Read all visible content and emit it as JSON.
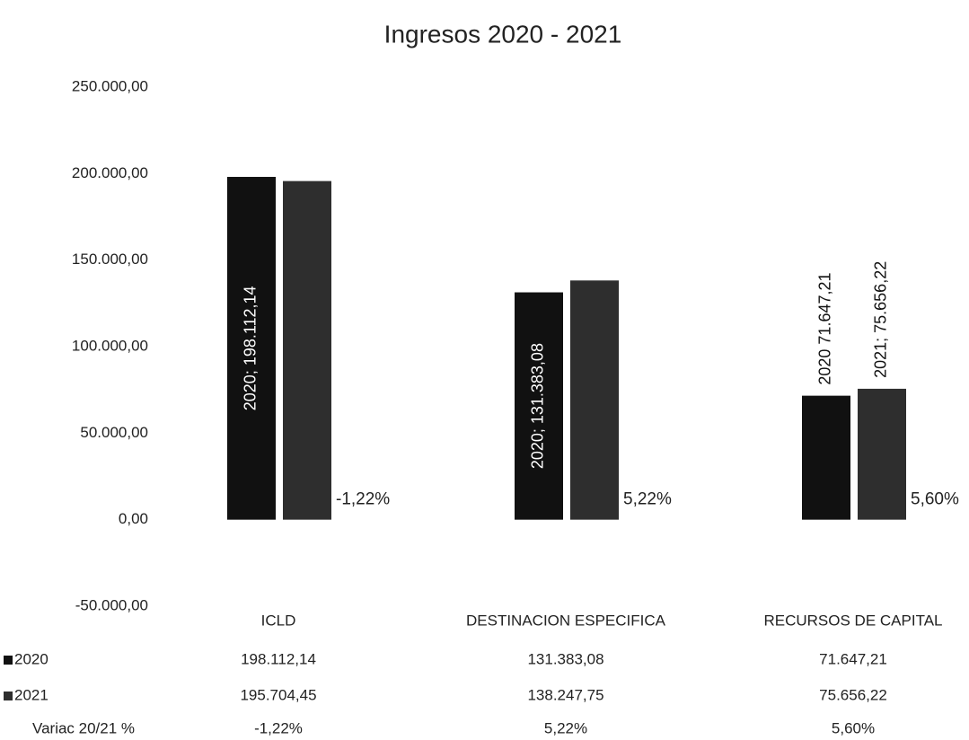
{
  "chart_data": {
    "type": "bar",
    "title": "Ingresos 2020 - 2021",
    "categories": [
      "ICLD",
      "DESTINACION ESPECIFICA",
      "RECURSOS DE CAPITAL"
    ],
    "series": [
      {
        "name": "2020",
        "color": "#111111",
        "values": [
          198112.14,
          131383.08,
          71647.21
        ],
        "value_labels": [
          "2020; 198.112,14",
          "2020; 131.383,08",
          "2020  71.647,21"
        ],
        "table_labels": [
          "198.112,14",
          "131.383,08",
          "71.647,21"
        ]
      },
      {
        "name": "2021",
        "color": "#2e2e2e",
        "values": [
          195704.45,
          138247.75,
          75656.22
        ],
        "value_labels": [
          null,
          null,
          "2021; 75.656,22"
        ],
        "table_labels": [
          "195.704,45",
          "138.247,75",
          "75.656,22"
        ]
      },
      {
        "name": "Variac 20/21 %",
        "type": "line",
        "values": [
          -1.22,
          5.22,
          5.6
        ],
        "value_labels": [
          "-1,22%",
          "5,22%",
          "5,60%"
        ]
      }
    ],
    "ylim": [
      -50000,
      250000
    ],
    "yticks": [
      {
        "value": -50000,
        "label": "-50.000,00"
      },
      {
        "value": 0,
        "label": "0,00"
      },
      {
        "value": 50000,
        "label": "50.000,00"
      },
      {
        "value": 100000,
        "label": "100.000,00"
      },
      {
        "value": 150000,
        "label": "150.000,00"
      },
      {
        "value": 200000,
        "label": "200.000,00"
      },
      {
        "value": 250000,
        "label": "250.000,00"
      }
    ],
    "grid": false
  }
}
